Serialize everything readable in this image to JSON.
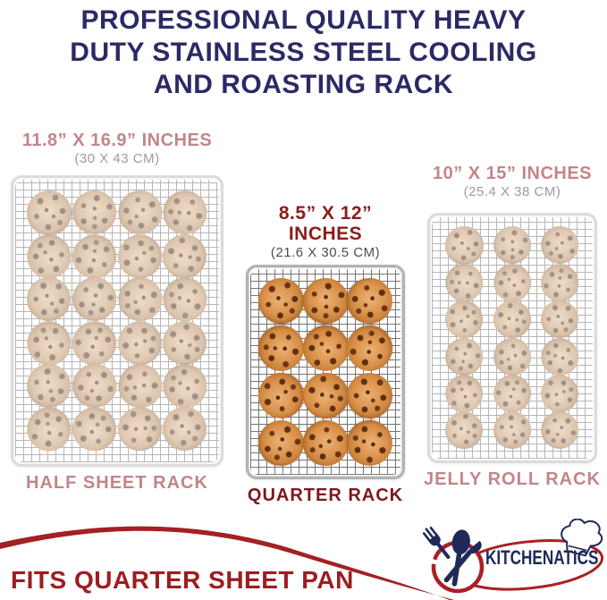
{
  "title_lines": [
    "PROFESSIONAL QUALITY HEAVY",
    "DUTY STAINLESS STEEL COOLING",
    "AND ROASTING RACK"
  ],
  "racks": [
    {
      "id": "half-sheet",
      "size_label": "11.8” X 16.9” INCHES",
      "cm_label": "(30 X 43 CM)",
      "name": "HALF SHEET RACK",
      "cookie_cols": 4,
      "cookie_rows": 6,
      "emphasized": false
    },
    {
      "id": "quarter",
      "size_label": "8.5” X 12” INCHES",
      "cm_label": "(21.6 X 30.5 CM)",
      "name": "QUARTER RACK",
      "cookie_cols": 3,
      "cookie_rows": 4,
      "emphasized": true
    },
    {
      "id": "jelly-roll",
      "size_label": "10” X 15” INCHES",
      "cm_label": "(25.4 X 38 CM)",
      "name": "JELLY ROLL RACK",
      "cookie_cols": 3,
      "cookie_rows": 6,
      "emphasized": false
    }
  ],
  "footer": {
    "text": "FITS QUARTER SHEET PAN"
  },
  "logo": {
    "brand": "KITCHENATICS"
  },
  "colors": {
    "title_navy": "#2b2a66",
    "logo_navy": "#202a5a",
    "accent_red": "#a32024",
    "emphasis_red": "#8c1c1c",
    "muted_rose": "#c28689",
    "muted_gray": "#9b9b9b"
  }
}
